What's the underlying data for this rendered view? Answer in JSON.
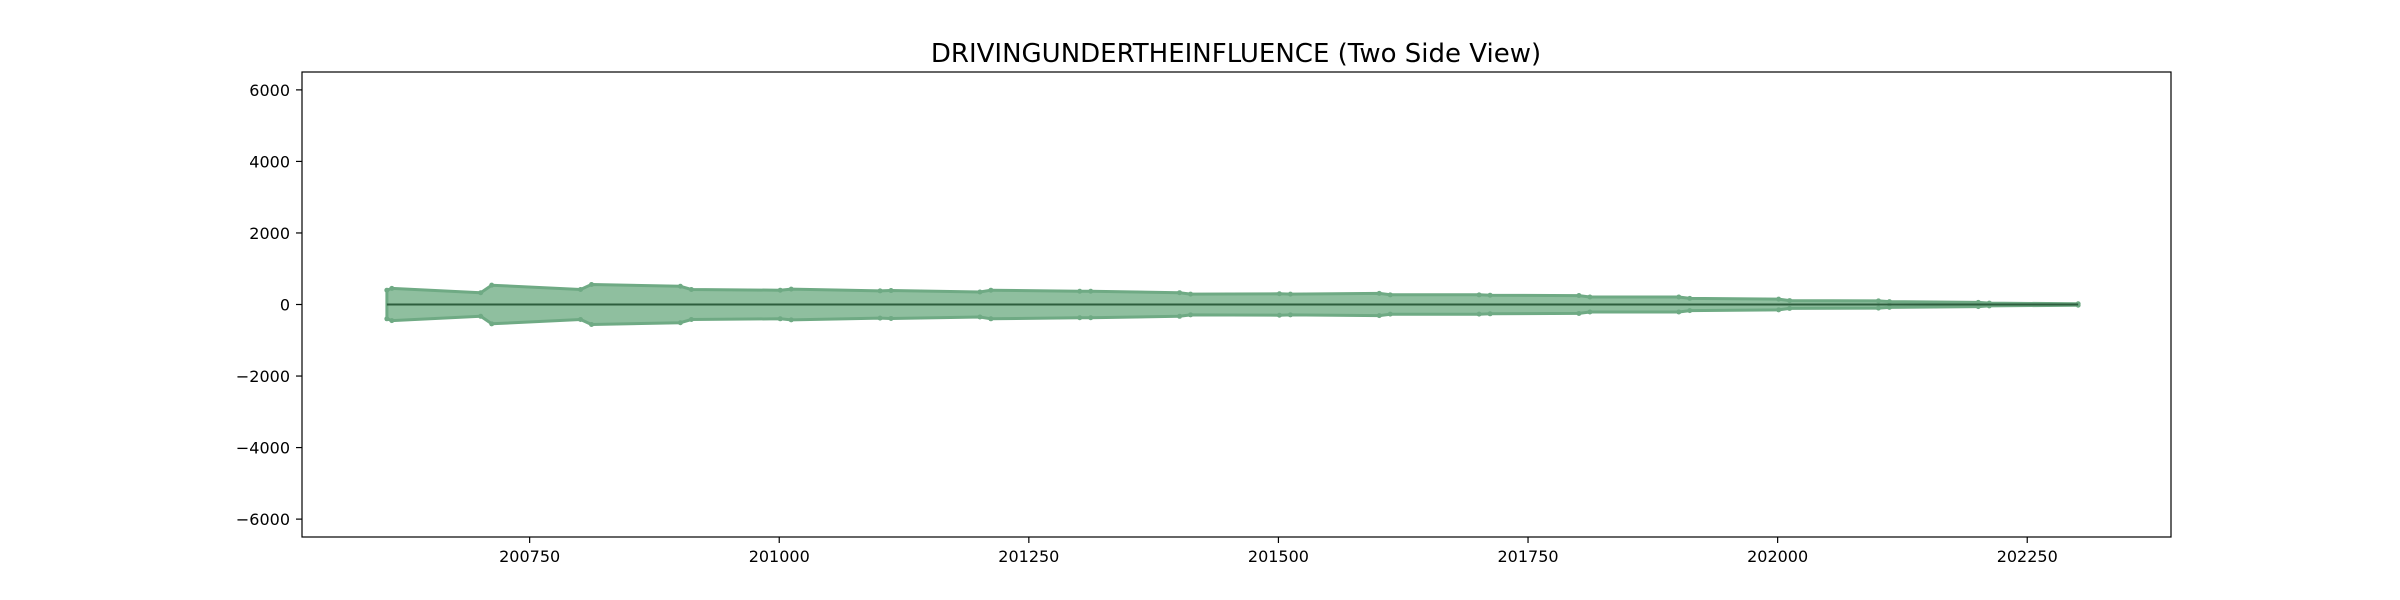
{
  "chart_data": {
    "type": "area",
    "title": "DRIVINGUNDERTHEINFLUENCE (Two Side View)",
    "xlabel": "",
    "ylabel": "",
    "xlim": [
      200522,
      202394
    ],
    "ylim": [
      -6500,
      6500
    ],
    "x_ticks": [
      200750,
      201000,
      201250,
      201500,
      201750,
      202000,
      202250
    ],
    "x_tick_labels": [
      "200750",
      "201000",
      "201250",
      "201500",
      "201750",
      "202000",
      "202250"
    ],
    "y_ticks": [
      6000,
      4000,
      2000,
      0,
      -2000,
      -4000,
      -6000
    ],
    "y_tick_labels": [
      "6000",
      "4000",
      "2000",
      "0",
      "−2000",
      "−4000",
      "−6000"
    ],
    "grid": false,
    "legend": "none",
    "series": [
      {
        "x": [
          200607,
          200612,
          200701,
          200712,
          200801,
          200812,
          200901,
          200912,
          201001,
          201012,
          201101,
          201112,
          201201,
          201212,
          201301,
          201312,
          201401,
          201412,
          201501,
          201512,
          201601,
          201612,
          201701,
          201712,
          201801,
          201812,
          201901,
          201912,
          202001,
          202012,
          202101,
          202112,
          202201,
          202212,
          202301
        ],
        "values": [
          400,
          450,
          330,
          540,
          420,
          560,
          510,
          420,
          400,
          430,
          380,
          390,
          350,
          400,
          370,
          370,
          330,
          290,
          300,
          290,
          310,
          270,
          270,
          260,
          250,
          210,
          210,
          170,
          150,
          110,
          100,
          80,
          60,
          40,
          20
        ],
        "symmetric": true,
        "fill": "#8fbf9f",
        "stroke": "#6faa84"
      }
    ],
    "center_line_color": "#2e5e3e"
  }
}
